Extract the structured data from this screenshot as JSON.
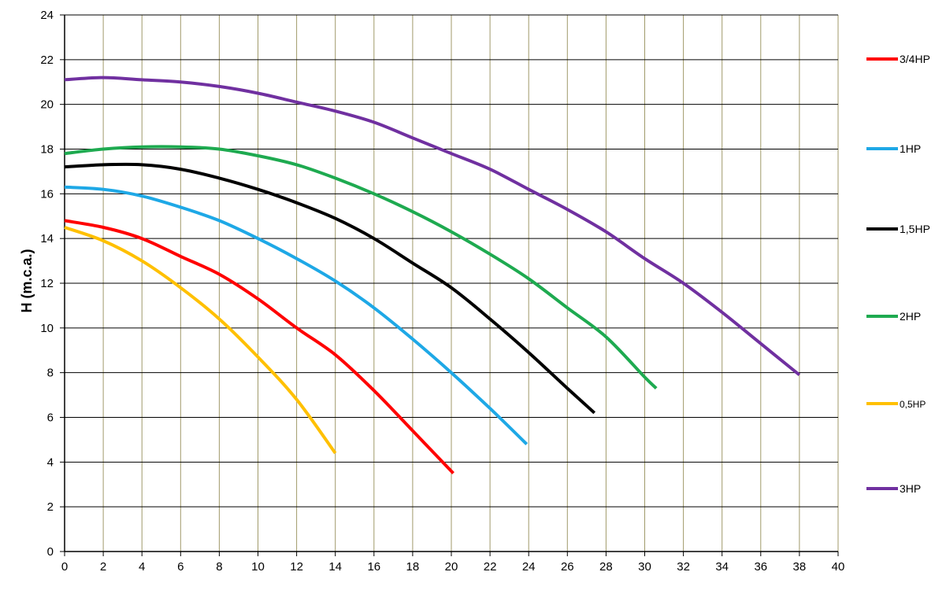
{
  "chart_data": {
    "type": "line",
    "title": "",
    "xlabel": "",
    "ylabel": "H (m.c.a.)",
    "xlim": [
      0,
      40
    ],
    "ylim": [
      0,
      24
    ],
    "x_ticks": [
      0,
      2,
      4,
      6,
      8,
      10,
      12,
      14,
      16,
      18,
      20,
      22,
      24,
      26,
      28,
      30,
      32,
      34,
      36,
      38,
      40
    ],
    "y_ticks": [
      0,
      2,
      4,
      6,
      8,
      10,
      12,
      14,
      16,
      18,
      20,
      22,
      24
    ],
    "grid": {
      "vertical": true,
      "horizontal": true,
      "vertical_color": "#a09a6a",
      "horizontal_color": "#000000"
    },
    "legend_position": "right",
    "series": [
      {
        "name": "3/4HP",
        "color": "#ff0000",
        "x": [
          0,
          2,
          4,
          6,
          8,
          10,
          12,
          14,
          16,
          18,
          20.1
        ],
        "y": [
          14.8,
          14.5,
          14,
          13.2,
          12.4,
          11.3,
          10,
          8.8,
          7.2,
          5.4,
          3.5
        ]
      },
      {
        "name": "1HP",
        "color": "#1ea8e6",
        "x": [
          0,
          2,
          4,
          6,
          8,
          10,
          12,
          14,
          16,
          18,
          20,
          22,
          23.9
        ],
        "y": [
          16.3,
          16.2,
          15.9,
          15.4,
          14.8,
          14,
          13.1,
          12.1,
          10.9,
          9.5,
          8,
          6.4,
          4.8
        ]
      },
      {
        "name": "1,5HP",
        "color": "#000000",
        "x": [
          0,
          2,
          4,
          6,
          8,
          10,
          12,
          14,
          16,
          18,
          20,
          22,
          24,
          26,
          27.4
        ],
        "y": [
          17.2,
          17.3,
          17.3,
          17.1,
          16.7,
          16.2,
          15.6,
          14.9,
          14,
          12.9,
          11.8,
          10.4,
          8.9,
          7.3,
          6.2
        ]
      },
      {
        "name": "2HP",
        "color": "#1eaa50",
        "x": [
          0,
          2,
          4,
          6,
          8,
          10,
          12,
          14,
          16,
          18,
          20,
          22,
          24,
          26,
          28,
          30,
          30.6
        ],
        "y": [
          17.8,
          18,
          18.1,
          18.1,
          18,
          17.7,
          17.3,
          16.7,
          16,
          15.2,
          14.3,
          13.3,
          12.2,
          10.9,
          9.6,
          7.8,
          7.3
        ]
      },
      {
        "name": "0,5HP",
        "color": "#ffc000",
        "x": [
          0,
          2,
          4,
          6,
          8,
          10,
          12,
          14
        ],
        "y": [
          14.5,
          13.9,
          13,
          11.8,
          10.4,
          8.7,
          6.8,
          4.4
        ]
      },
      {
        "name": "3HP",
        "color": "#7030a0",
        "x": [
          0,
          2,
          4,
          6,
          8,
          10,
          12,
          14,
          16,
          18,
          20,
          22,
          24,
          26,
          28,
          30,
          32,
          34,
          36,
          38
        ],
        "y": [
          21.1,
          21.2,
          21.1,
          21,
          20.8,
          20.5,
          20.1,
          19.7,
          19.2,
          18.5,
          17.8,
          17.1,
          16.2,
          15.3,
          14.3,
          13.1,
          12,
          10.7,
          9.3,
          7.9
        ]
      }
    ]
  }
}
